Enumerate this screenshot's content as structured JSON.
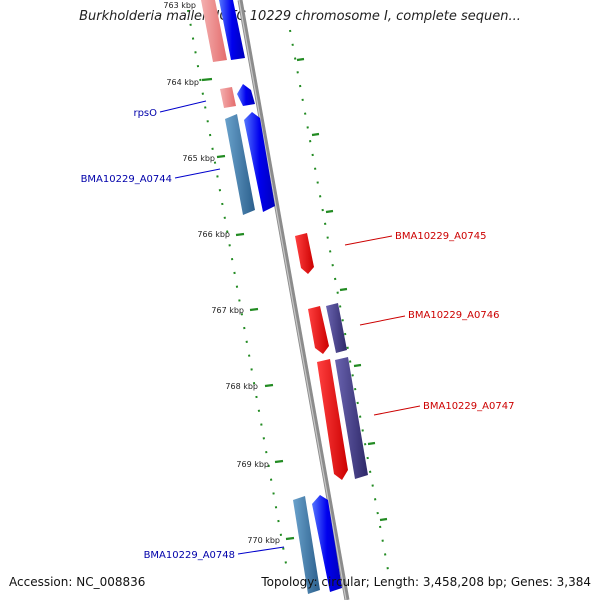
{
  "title": "Burkholderia mallei NCTC 10229 chromosome I, complete sequen...",
  "footer": {
    "accession": "Accession: NC_008836",
    "summary": "Topology: circular; Length: 3,458,208 bp; Genes: 3,384"
  },
  "colors": {
    "forward_cds": "#0000ee",
    "forward_cds_pale": "#ee8888",
    "forward_gene": "#3a78a8",
    "reverse_cds": "#ee0000",
    "reverse_gene": "#443c88",
    "tick": "#228b22",
    "backbone": "#888888",
    "label_forward": "#0000aa",
    "label_reverse": "#cc0000"
  },
  "ticks": [
    "763 kbp",
    "764 kbp",
    "765 kbp",
    "766 kbp",
    "767 kbp",
    "768 kbp",
    "769 kbp",
    "770 kbp"
  ],
  "labels": {
    "rpsO": "rpsO",
    "a0744": "BMA10229_A0744",
    "a0745": "BMA10229_A0745",
    "a0746": "BMA10229_A0746",
    "a0747": "BMA10229_A0747",
    "a0748": "BMA10229_A0748"
  }
}
